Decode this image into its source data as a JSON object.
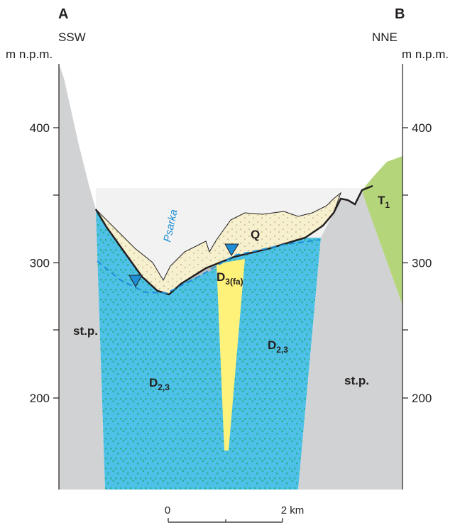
{
  "header": {
    "left_point": "A",
    "right_point": "B",
    "left_direction": "SSW",
    "right_direction": "NNE"
  },
  "left_axis": {
    "unit": "m n.p.m.",
    "ticks": [
      400,
      300,
      200
    ]
  },
  "right_axis": {
    "unit": "m n.p.m.",
    "ticks": [
      400,
      300,
      200
    ]
  },
  "units": [
    {
      "main": "st.p."
    },
    {
      "main": "st.p."
    },
    {
      "main": "D",
      "sub": "2,3"
    },
    {
      "main": "D",
      "sub": "2,3"
    },
    {
      "main": "D",
      "sub": "3(fa)"
    },
    {
      "main": "Q"
    },
    {
      "main": "T",
      "sub": "1"
    }
  ],
  "river": "Psarka",
  "scale": {
    "start": "0",
    "end": "2 km"
  }
}
